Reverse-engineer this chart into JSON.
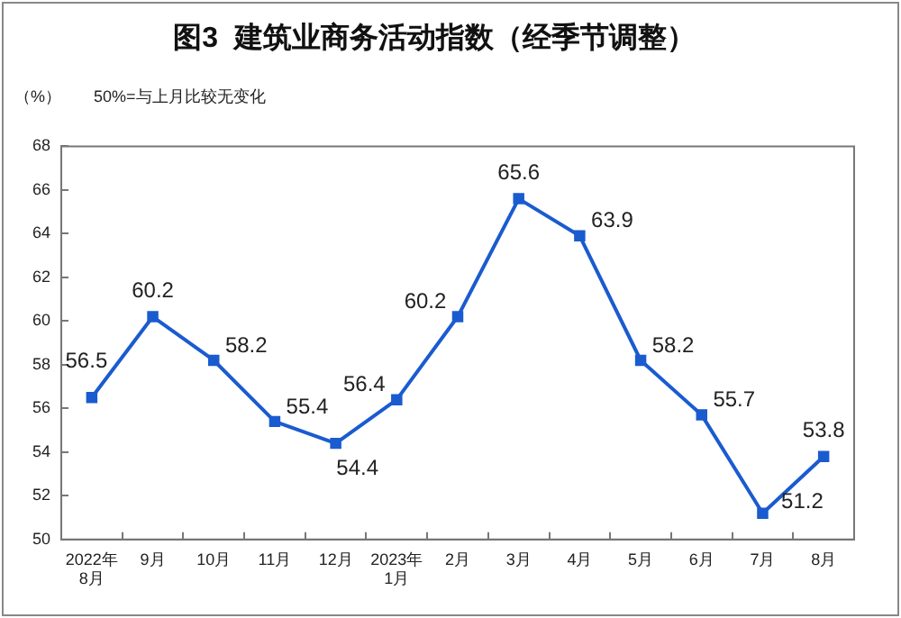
{
  "chart_data": {
    "type": "line",
    "title": "图3  建筑业商务活动指数（经季节调整）",
    "ylabel": "（%）",
    "annotations": [
      "50%=与上月比较无变化"
    ],
    "categories": [
      "2022年\n8月",
      "9月",
      "10月",
      "11月",
      "12月",
      "2023年\n1月",
      "2月",
      "3月",
      "4月",
      "5月",
      "6月",
      "7月",
      "8月"
    ],
    "series": [
      {
        "color": "#1a5bd0",
        "values": [
          56.5,
          60.2,
          58.2,
          55.4,
          54.4,
          56.4,
          60.2,
          65.6,
          63.9,
          58.2,
          55.7,
          51.2,
          53.8
        ]
      }
    ],
    "ylim": [
      50,
      68
    ],
    "yticks": [
      50,
      52,
      54,
      56,
      58,
      60,
      62,
      64,
      66,
      68
    ],
    "grid": false,
    "legend": false,
    "marker": "square",
    "line_style": "solid",
    "data_labels": true
  }
}
